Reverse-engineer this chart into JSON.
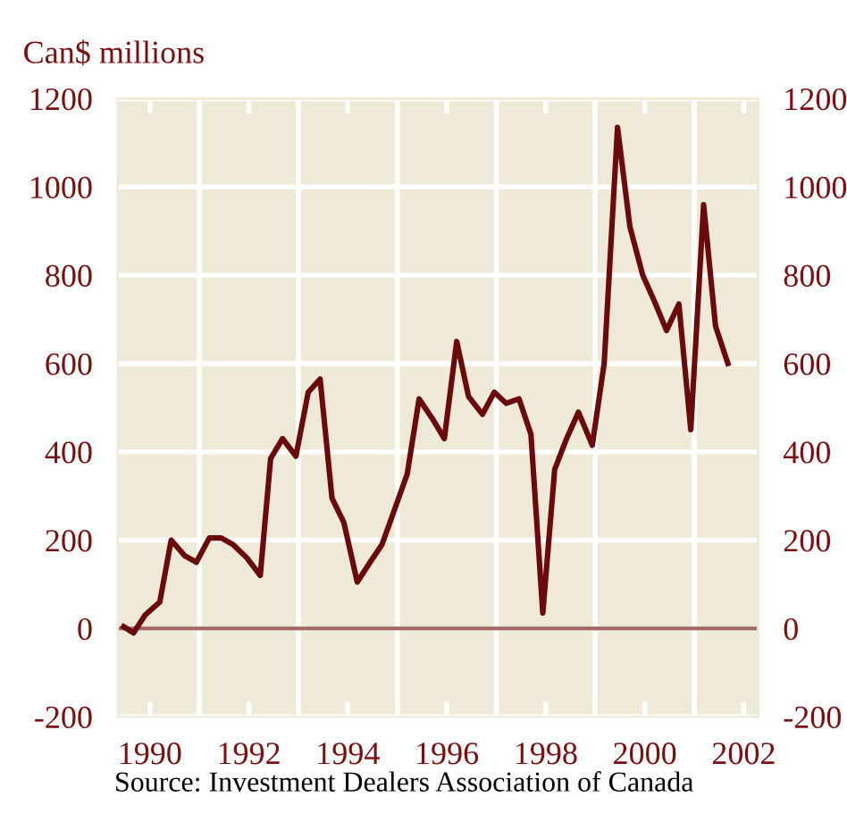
{
  "chart_data": {
    "type": "line",
    "ylabel": "Can$ millions",
    "x": [
      1989.47,
      1989.67,
      1989.9,
      1990.2,
      1990.43,
      1990.7,
      1990.94,
      1991.2,
      1991.44,
      1991.68,
      1991.96,
      1992.23,
      1992.44,
      1992.68,
      1992.95,
      1993.2,
      1993.44,
      1993.68,
      1993.92,
      1994.19,
      1994.45,
      1994.69,
      1994.93,
      1995.2,
      1995.44,
      1995.71,
      1995.95,
      1996.2,
      1996.44,
      1996.72,
      1996.96,
      1997.2,
      1997.46,
      1997.7,
      1997.94,
      1998.18,
      1998.42,
      1998.66,
      1998.94,
      1999.18,
      1999.45,
      1999.7,
      1999.96,
      2000.2,
      2000.44,
      2000.69,
      2000.93,
      2001.19,
      2001.43,
      2001.68
    ],
    "series": [
      {
        "color": "#6b0a0a",
        "values": [
          4,
          -10,
          30,
          60,
          200,
          165,
          150,
          205,
          205,
          190,
          160,
          120,
          385,
          430,
          390,
          535,
          565,
          295,
          240,
          105,
          150,
          190,
          265,
          350,
          520,
          475,
          430,
          650,
          525,
          485,
          535,
          510,
          520,
          440,
          35,
          360,
          430,
          490,
          415,
          600,
          1135,
          910,
          800,
          740,
          675,
          735,
          450,
          960,
          685,
          600
        ]
      }
    ],
    "xlim": [
      1989.35,
      2002.29
    ],
    "xticks": [
      {
        "value": 1990,
        "label": "1990"
      },
      {
        "value": 1991,
        "label": null
      },
      {
        "value": 1992,
        "label": "1992"
      },
      {
        "value": 1993,
        "label": null
      },
      {
        "value": 1994,
        "label": "1994"
      },
      {
        "value": 1995,
        "label": null
      },
      {
        "value": 1996,
        "label": "1996"
      },
      {
        "value": 1997,
        "label": null
      },
      {
        "value": 1998,
        "label": "1998"
      },
      {
        "value": 1999,
        "label": null
      },
      {
        "value": 2000,
        "label": "2000"
      },
      {
        "value": 2001,
        "label": null
      },
      {
        "value": 2002,
        "label": "2002"
      }
    ],
    "ylim": [
      -200,
      1200
    ],
    "yticks": [
      -200,
      0,
      200,
      400,
      600,
      800,
      1000,
      1200
    ],
    "y2lim": [
      -200,
      1200
    ],
    "y2ticks": [
      -200,
      0,
      200,
      400,
      600,
      800,
      1000,
      1200
    ],
    "ref_lines": [
      {
        "axis": "y",
        "value": 0,
        "color": "#a06a60"
      }
    ],
    "grid": true,
    "legend": false,
    "marker": "none",
    "line_style": "solid",
    "annotations": [
      "Source: Investment Dealers Association of Canada"
    ]
  }
}
